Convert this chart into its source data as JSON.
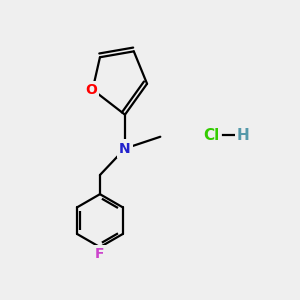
{
  "bg_color": "#efefef",
  "atom_colors": {
    "O": "#ff0000",
    "N": "#2222cc",
    "F": "#cc44cc",
    "C": "#000000",
    "Cl": "#33cc00",
    "H": "#5599aa"
  },
  "figsize": [
    3.0,
    3.0
  ],
  "dpi": 100
}
